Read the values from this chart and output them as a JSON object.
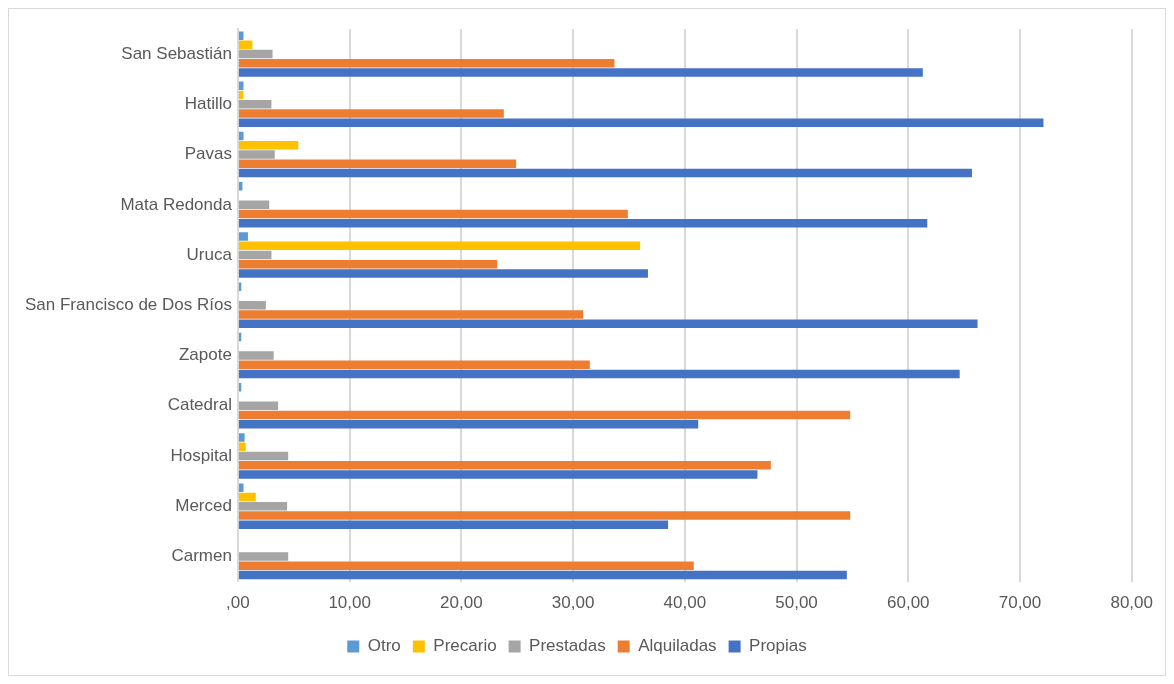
{
  "chart_data": {
    "type": "bar",
    "orientation": "horizontal",
    "categories": [
      "San Sebastián",
      "Hatillo",
      "Pavas",
      "Mata Redonda",
      "Uruca",
      "San Francisco de Dos Ríos",
      "Zapote",
      "Catedral",
      "Hospital",
      "Merced",
      "Carmen"
    ],
    "series": [
      {
        "name": "Otro",
        "color": "#5b9bd5",
        "values": [
          0.5,
          0.5,
          0.5,
          0.4,
          0.9,
          0.3,
          0.3,
          0.3,
          0.6,
          0.5,
          null
        ]
      },
      {
        "name": "Precario",
        "color": "#ffc000",
        "values": [
          1.3,
          0.5,
          5.4,
          null,
          36.0,
          null,
          0,
          0,
          0.7,
          1.6,
          0
        ]
      },
      {
        "name": "Prestadas",
        "color": "#a5a5a5",
        "values": [
          3.1,
          3.0,
          3.3,
          2.8,
          3.0,
          2.5,
          3.2,
          3.6,
          4.5,
          4.4,
          4.5
        ]
      },
      {
        "name": "Alquiladas",
        "color": "#ed7d31",
        "values": [
          33.7,
          23.8,
          24.9,
          34.9,
          23.2,
          30.9,
          31.5,
          54.8,
          47.7,
          54.8,
          40.8
        ]
      },
      {
        "name": "Propias",
        "color": "#4472c4",
        "values": [
          61.3,
          72.1,
          65.7,
          61.7,
          36.7,
          66.2,
          64.6,
          41.2,
          46.5,
          38.5,
          54.5
        ]
      }
    ],
    "xlim": [
      0,
      80
    ],
    "xticks": [
      {
        "value": 0,
        "label": ",00"
      },
      {
        "value": 10,
        "label": "10,00"
      },
      {
        "value": 20,
        "label": "20,00"
      },
      {
        "value": 30,
        "label": "30,00"
      },
      {
        "value": 40,
        "label": "40,00"
      },
      {
        "value": 50,
        "label": "50,00"
      },
      {
        "value": 60,
        "label": "60,00"
      },
      {
        "value": 70,
        "label": "70,00"
      },
      {
        "value": 80,
        "label": "80,00"
      }
    ],
    "grid": "x",
    "legend": "bottom"
  }
}
